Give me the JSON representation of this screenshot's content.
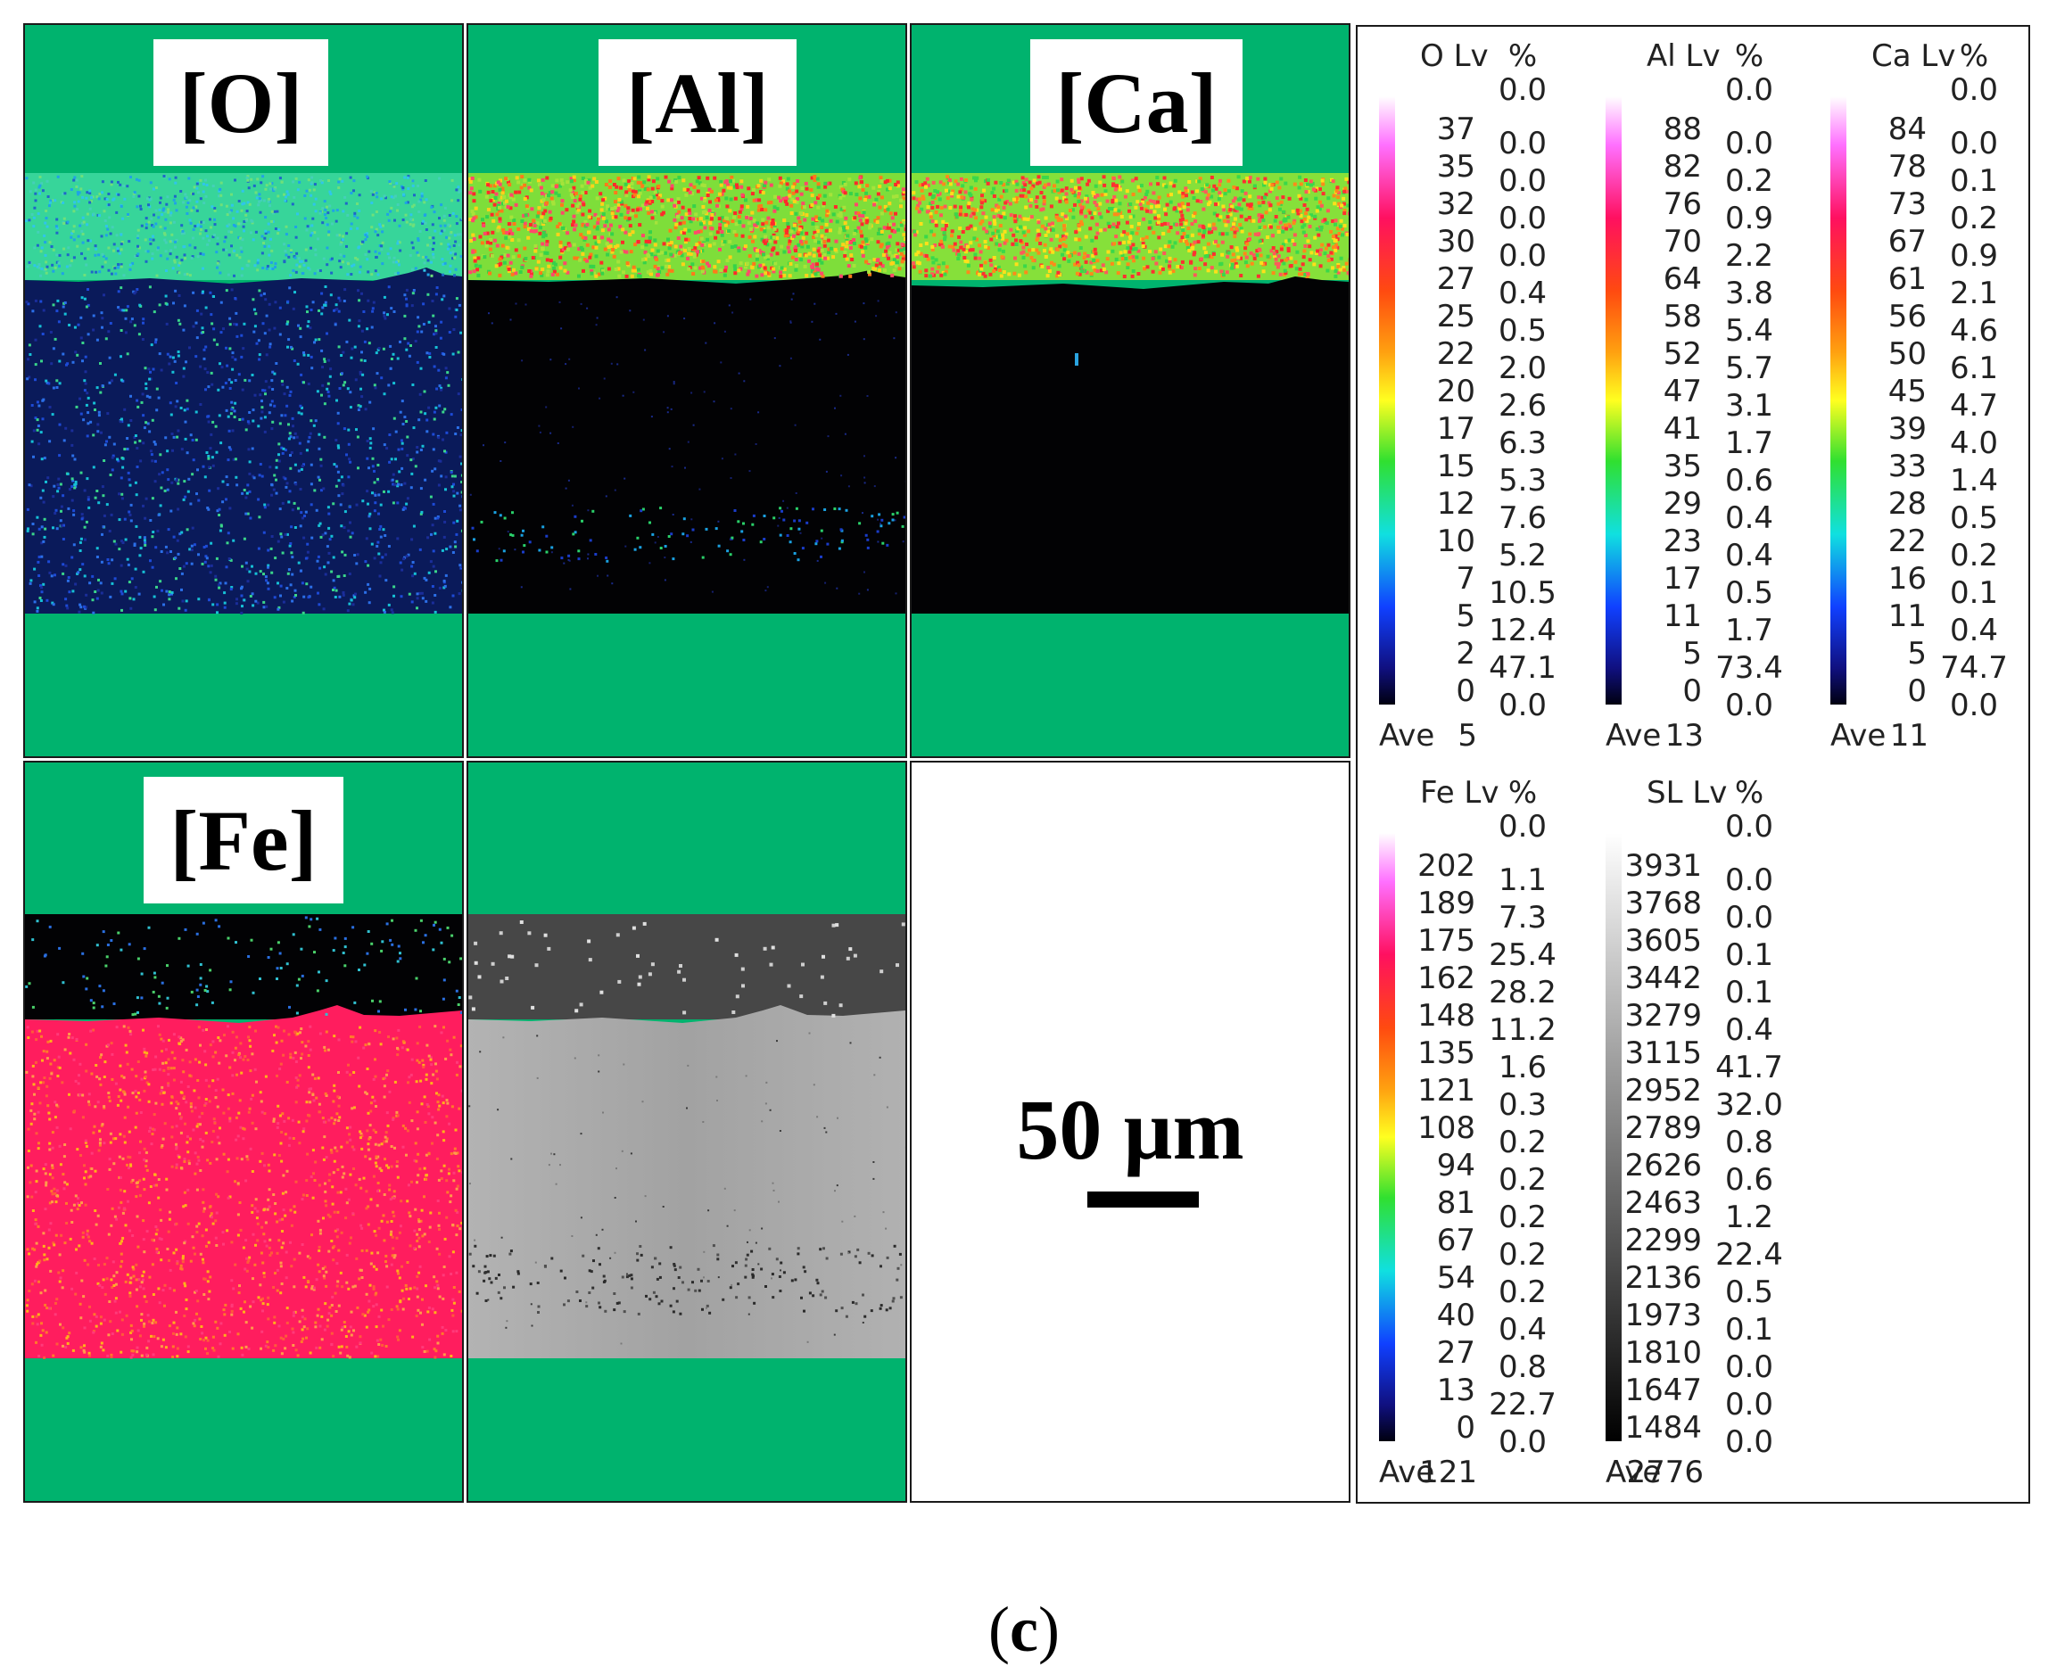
{
  "panels": {
    "O": {
      "label": "[O]"
    },
    "Al": {
      "label": "[Al]"
    },
    "Ca": {
      "label": "[Ca]"
    },
    "Fe": {
      "label": "[Fe]"
    }
  },
  "scale_bar": {
    "text": "50 µm"
  },
  "caption": {
    "open": "(",
    "letter": "c",
    "close": ")"
  },
  "colors": {
    "background_green": "#00b36e",
    "map_blue": "#0a1a5a",
    "map_black": "#020204",
    "fe_red": "#ff1d5e",
    "sem_light": "#a6a6a6",
    "sem_dark": "#474747"
  },
  "legends": [
    {
      "element": "O",
      "lv_header": "O  Lv",
      "pct_header": "%",
      "pct_top": "0.0",
      "levels": [
        "37",
        "35",
        "32",
        "30",
        "27",
        "25",
        "22",
        "20",
        "17",
        "15",
        "12",
        "10",
        "7",
        "5",
        "2",
        "0"
      ],
      "percents": [
        "0.0",
        "0.0",
        "0.0",
        "0.0",
        "0.4",
        "0.5",
        "2.0",
        "2.6",
        "6.3",
        "5.3",
        "7.6",
        "5.2",
        "10.5",
        "12.4",
        "47.1",
        "0.0"
      ],
      "ave_label": "Ave",
      "ave_value": "5",
      "scale": "color"
    },
    {
      "element": "Al",
      "lv_header": "Al  Lv",
      "pct_header": "%",
      "pct_top": "0.0",
      "levels": [
        "88",
        "82",
        "76",
        "70",
        "64",
        "58",
        "52",
        "47",
        "41",
        "35",
        "29",
        "23",
        "17",
        "11",
        "5",
        "0"
      ],
      "percents": [
        "0.0",
        "0.2",
        "0.9",
        "2.2",
        "3.8",
        "5.4",
        "5.7",
        "3.1",
        "1.7",
        "0.6",
        "0.4",
        "0.4",
        "0.5",
        "1.7",
        "73.4",
        "0.0"
      ],
      "ave_label": "Ave",
      "ave_value": "13",
      "scale": "color"
    },
    {
      "element": "Ca",
      "lv_header": "Ca Lv",
      "pct_header": "%",
      "pct_top": "0.0",
      "levels": [
        "84",
        "78",
        "73",
        "67",
        "61",
        "56",
        "50",
        "45",
        "39",
        "33",
        "28",
        "22",
        "16",
        "11",
        "5",
        "0"
      ],
      "percents": [
        "0.0",
        "0.1",
        "0.2",
        "0.9",
        "2.1",
        "4.6",
        "6.1",
        "4.7",
        "4.0",
        "1.4",
        "0.5",
        "0.2",
        "0.1",
        "0.4",
        "74.7",
        "0.0"
      ],
      "ave_label": "Ave",
      "ave_value": "11",
      "scale": "color"
    },
    {
      "element": "Fe",
      "lv_header": "Fe Lv",
      "pct_header": "%",
      "pct_top": "0.0",
      "levels": [
        "202",
        "189",
        "175",
        "162",
        "148",
        "135",
        "121",
        "108",
        "94",
        "81",
        "67",
        "54",
        "40",
        "27",
        "13",
        "0"
      ],
      "percents": [
        "1.1",
        "7.3",
        "25.4",
        "28.2",
        "11.2",
        "1.6",
        "0.3",
        "0.2",
        "0.2",
        "0.2",
        "0.2",
        "0.2",
        "0.4",
        "0.8",
        "22.7",
        "0.0"
      ],
      "ave_label": "Ave",
      "ave_value": "121",
      "scale": "color"
    },
    {
      "element": "SL",
      "lv_header": "SL Lv",
      "pct_header": "%",
      "pct_top": "0.0",
      "levels": [
        "3931",
        "3768",
        "3605",
        "3442",
        "3279",
        "3115",
        "2952",
        "2789",
        "2626",
        "2463",
        "2299",
        "2136",
        "1973",
        "1810",
        "1647",
        "1484"
      ],
      "percents": [
        "0.0",
        "0.0",
        "0.1",
        "0.1",
        "0.4",
        "41.7",
        "32.0",
        "0.8",
        "0.6",
        "1.2",
        "22.4",
        "0.5",
        "0.1",
        "0.0",
        "0.0",
        "0.0"
      ],
      "ave_label": "Ave",
      "ave_value": "2776",
      "scale": "gray"
    }
  ]
}
